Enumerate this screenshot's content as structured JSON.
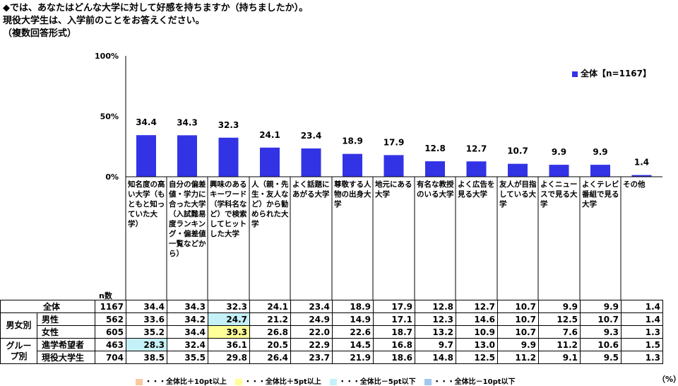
{
  "question": {
    "line1": "◆では、あなたはどんな大学に対して好感を持ちますか（持ちましたか）。",
    "line2": "現役大学生は、入学前のことをお答えください。",
    "line3": "（複数回答形式）"
  },
  "chart_data": {
    "type": "bar",
    "categories": [
      "知名度の高い大学（もともと知っていた大学）",
      "自分の偏差値・学力に合った大学（入試難易度ランキング・偏差値一覧などから）",
      "興味のあるキーワード（学科名など）で検索してヒットした大学",
      "人（親・先生・友人など）から勧められた大学",
      "よく話題にあがる大学",
      "尊敬する人物の出身大学",
      "地元にある大学",
      "有名な教授のいる大学",
      "よく広告を見る大学",
      "友人が目指している大学",
      "よくニュースで見る大学",
      "よくテレビ番組で見る大学",
      "その他"
    ],
    "series": [
      {
        "name": "全体【n=1167】",
        "values": [
          34.4,
          34.3,
          32.3,
          24.1,
          23.4,
          18.9,
          17.9,
          12.8,
          12.7,
          10.7,
          9.9,
          9.9,
          1.4
        ]
      }
    ],
    "value_labels": [
      "34.4",
      "34.3",
      "32.3",
      "24.1",
      "23.4",
      "18.9",
      "17.9",
      "12.8",
      "12.7",
      "10.7",
      "9.9",
      "9.9",
      "1.4"
    ],
    "yticks": [
      "100%",
      "50%",
      "0%"
    ],
    "ylim": [
      0,
      100
    ],
    "color": "#3333e6",
    "grid": false,
    "legend_position": "top-right"
  },
  "table": {
    "n_label": "n数",
    "rows": [
      {
        "group": "",
        "label": "全体",
        "n": "1167",
        "values": [
          "34.4",
          "34.3",
          "32.3",
          "24.1",
          "23.4",
          "18.9",
          "17.9",
          "12.8",
          "12.7",
          "10.7",
          "9.9",
          "9.9",
          "1.4"
        ],
        "hl": {}
      },
      {
        "group": "男女別",
        "label": "男性",
        "n": "562",
        "values": [
          "33.6",
          "34.2",
          "24.7",
          "21.2",
          "24.9",
          "14.9",
          "17.1",
          "12.3",
          "14.6",
          "10.7",
          "12.5",
          "10.7",
          "1.4"
        ],
        "hl": {
          "2": "cyan"
        }
      },
      {
        "group": "",
        "label": "女性",
        "n": "605",
        "values": [
          "35.2",
          "34.4",
          "39.3",
          "26.8",
          "22.0",
          "22.6",
          "18.7",
          "13.2",
          "10.9",
          "10.7",
          "7.6",
          "9.3",
          "1.3"
        ],
        "hl": {
          "2": "yellow"
        }
      },
      {
        "group": "グループ別",
        "label": "進学希望者",
        "n": "463",
        "values": [
          "28.3",
          "32.4",
          "36.1",
          "20.5",
          "22.9",
          "14.5",
          "16.8",
          "9.7",
          "13.0",
          "9.9",
          "11.2",
          "10.6",
          "1.5"
        ],
        "hl": {
          "0": "cyan"
        }
      },
      {
        "group": "",
        "label": "現役大学生",
        "n": "704",
        "values": [
          "38.5",
          "35.5",
          "29.8",
          "26.4",
          "23.7",
          "21.9",
          "18.6",
          "14.8",
          "12.5",
          "11.2",
          "9.1",
          "9.5",
          "1.3"
        ],
        "hl": {}
      }
    ]
  },
  "unit_note": "（%）",
  "highlight_key": [
    {
      "label": "・・・全体比＋10pt以上",
      "color": "#f9c9a0"
    },
    {
      "label": "・・・全体比＋5pt以上",
      "color": "#ffff99"
    },
    {
      "label": "・・・全体比－5pt以下",
      "color": "#c4f1f7"
    },
    {
      "label": "・・・全体比－10pt以下",
      "color": "#9fc6ee"
    }
  ]
}
